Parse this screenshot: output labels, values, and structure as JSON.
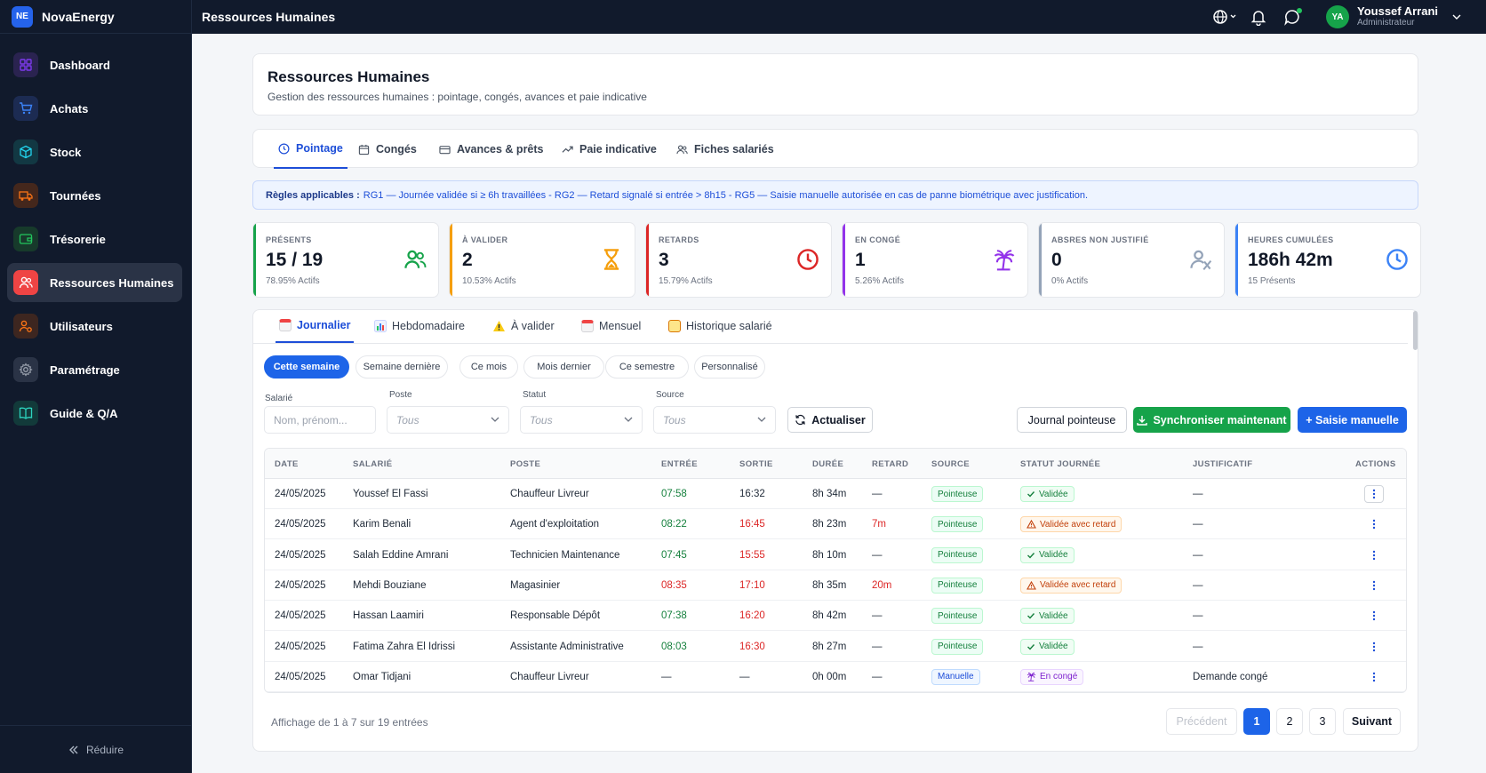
{
  "brand": {
    "logo": "NE",
    "name": "NovaEnergy"
  },
  "sidebar": {
    "items": [
      {
        "label": "Dashboard",
        "icon": "grid-icon",
        "color": "#7c3aed",
        "bg": "#2a2350"
      },
      {
        "label": "Achats",
        "icon": "cart-icon",
        "color": "#3b82f6",
        "bg": "#1c2b52"
      },
      {
        "label": "Stock",
        "icon": "box-icon",
        "color": "#22d3ee",
        "bg": "#123843"
      },
      {
        "label": "Tournées",
        "icon": "truck-icon",
        "color": "#f97316",
        "bg": "#44271c"
      },
      {
        "label": "Trésorerie",
        "icon": "wallet-icon",
        "color": "#22c55e",
        "bg": "#173a2b"
      },
      {
        "label": "Ressources Humaines",
        "icon": "users-icon",
        "color": "#ffffff",
        "bg": "#ef4444",
        "active": true
      },
      {
        "label": "Utilisateurs",
        "icon": "user-cog-icon",
        "color": "#f97316",
        "bg": "#3d2620"
      },
      {
        "label": "Paramétrage",
        "icon": "gear-icon",
        "color": "#9ca3af",
        "bg": "#2a3346"
      },
      {
        "label": "Guide & Q/A",
        "icon": "book-icon",
        "color": "#2dd4bf",
        "bg": "#123a3a"
      }
    ],
    "collapse_label": "Réduire"
  },
  "topbar": {
    "title": "Ressources Humaines",
    "user": {
      "initials": "YA",
      "name": "Youssef Arrani",
      "role": "Administrateur"
    }
  },
  "header": {
    "title": "Ressources Humaines",
    "subtitle": "Gestion des ressources humaines : pointage, congés, avances et paie indicative"
  },
  "main_tabs": [
    {
      "label": "Pointage",
      "icon": "clock-icon",
      "active": true
    },
    {
      "label": "Congés",
      "icon": "calendar-icon"
    },
    {
      "label": "Avances & prêts",
      "icon": "card-icon"
    },
    {
      "label": "Paie indicative",
      "icon": "trend-icon"
    },
    {
      "label": "Fiches salariés",
      "icon": "users-icon"
    }
  ],
  "rules": {
    "title": "Règles applicables :",
    "text": "RG1 — Journée validée si ≥ 6h travaillées - RG2 — Retard signalé si entrée > 8h15 - RG5 — Saisie manuelle autorisée en cas de panne biométrique avec justification."
  },
  "stats": [
    {
      "label": "PRÉSENTS",
      "value": "15 / 19",
      "sub": "78.95% Actifs",
      "color": "#16a34a",
      "icon": "users-icon"
    },
    {
      "label": "À VALIDER",
      "value": "2",
      "sub": "10.53% Actifs",
      "color": "#f59e0b",
      "icon": "hourglass-icon"
    },
    {
      "label": "RETARDS",
      "value": "3",
      "sub": "15.79% Actifs",
      "color": "#dc2626",
      "icon": "clock-icon"
    },
    {
      "label": "EN CONGÉ",
      "value": "1",
      "sub": "5.26% Actifs",
      "color": "#9333ea",
      "icon": "palm-icon"
    },
    {
      "label": "ABSRES NON JUSTIFIÉ",
      "value": "0",
      "sub": "0% Actifs",
      "color": "#94a3b8",
      "icon": "user-x-icon"
    },
    {
      "label": "HEURES CUMULÉES",
      "value": "186h 42m",
      "sub": "15 Présents",
      "color": "#3b82f6",
      "icon": "clock-icon"
    }
  ],
  "sub_tabs": [
    {
      "label": "Journalier",
      "active": true,
      "icon": "calendar-emoji-icon"
    },
    {
      "label": "Hebdomadaire",
      "icon": "chart-emoji-icon"
    },
    {
      "label": "À valider",
      "icon": "warning-emoji-icon"
    },
    {
      "label": "Mensuel",
      "icon": "calendar-emoji-icon"
    },
    {
      "label": "Historique salarié",
      "icon": "notebook-emoji-icon"
    }
  ],
  "periods": [
    {
      "label": "Cette semaine",
      "active": true
    },
    {
      "label": "Semaine dernière"
    },
    {
      "label": "Ce mois"
    },
    {
      "label": "Mois dernier"
    },
    {
      "label": "Ce semestre"
    },
    {
      "label": "Personnalisé"
    }
  ],
  "filters": {
    "salarie": {
      "label": "Salarié",
      "placeholder": "Nom, prénom..."
    },
    "poste": {
      "label": "Poste",
      "value": "Tous"
    },
    "statut": {
      "label": "Statut",
      "value": "Tous"
    },
    "source": {
      "label": "Source",
      "value": "Tous"
    },
    "refresh_label": "Actualiser"
  },
  "actions": {
    "journal": "Journal pointeuse",
    "sync": "Synchroniser maintenant",
    "manual": "+ Saisie manuelle"
  },
  "table": {
    "headers": [
      "DATE",
      "SALARIÉ",
      "POSTE",
      "ENTRÉE",
      "SORTIE",
      "DURÉE",
      "RETARD",
      "SOURCE",
      "STATUT JOURNÉE",
      "JUSTIFICATIF",
      "ACTIONS"
    ],
    "rows": [
      {
        "date": "24/05/2025",
        "salarie": "Youssef El Fassi",
        "poste": "Chauffeur Livreur",
        "entree": "07:58",
        "entree_state": "ok",
        "sortie": "16:32",
        "sortie_state": "normal",
        "duree": "8h 34m",
        "retard": "—",
        "source": "Pointeuse",
        "statut": "Validée",
        "statut_type": "ok",
        "justificatif": "—"
      },
      {
        "date": "24/05/2025",
        "salarie": "Karim Benali",
        "poste": "Agent d'exploitation",
        "entree": "08:22",
        "entree_state": "ok",
        "sortie": "16:45",
        "sortie_state": "late",
        "duree": "8h 23m",
        "retard": "7m",
        "source": "Pointeuse",
        "statut": "Validée avec retard",
        "statut_type": "warn",
        "justificatif": "—"
      },
      {
        "date": "24/05/2025",
        "salarie": "Salah Eddine Amrani",
        "poste": "Technicien Maintenance",
        "entree": "07:45",
        "entree_state": "ok",
        "sortie": "15:55",
        "sortie_state": "late",
        "duree": "8h 10m",
        "retard": "—",
        "source": "Pointeuse",
        "statut": "Validée",
        "statut_type": "ok",
        "justificatif": "—"
      },
      {
        "date": "24/05/2025",
        "salarie": "Mehdi Bouziane",
        "poste": "Magasinier",
        "entree": "08:35",
        "entree_state": "late",
        "sortie": "17:10",
        "sortie_state": "late",
        "duree": "8h 35m",
        "retard": "20m",
        "source": "Pointeuse",
        "statut": "Validée avec retard",
        "statut_type": "warn",
        "justificatif": "—"
      },
      {
        "date": "24/05/2025",
        "salarie": "Hassan Laamiri",
        "poste": "Responsable Dépôt",
        "entree": "07:38",
        "entree_state": "ok",
        "sortie": "16:20",
        "sortie_state": "late",
        "duree": "8h 42m",
        "retard": "—",
        "source": "Pointeuse",
        "statut": "Validée",
        "statut_type": "ok",
        "justificatif": "—"
      },
      {
        "date": "24/05/2025",
        "salarie": "Fatima Zahra El Idrissi",
        "poste": "Assistante Administrative",
        "entree": "08:03",
        "entree_state": "ok",
        "sortie": "16:30",
        "sortie_state": "late",
        "duree": "8h 27m",
        "retard": "—",
        "source": "Pointeuse",
        "statut": "Validée",
        "statut_type": "ok",
        "justificatif": "—"
      },
      {
        "date": "24/05/2025",
        "salarie": "Omar Tidjani",
        "poste": "Chauffeur Livreur",
        "entree": "—",
        "entree_state": "normal",
        "sortie": "—",
        "sortie_state": "normal",
        "duree": "0h 00m",
        "retard": "—",
        "source": "Manuelle",
        "statut": "En congé",
        "statut_type": "conge",
        "justificatif": "Demande congé"
      }
    ]
  },
  "pagination": {
    "summary": "Affichage de 1 à 7 sur 19 entrées",
    "prev": "Précédent",
    "pages": [
      "1",
      "2",
      "3"
    ],
    "current": "1",
    "next": "Suivant"
  }
}
